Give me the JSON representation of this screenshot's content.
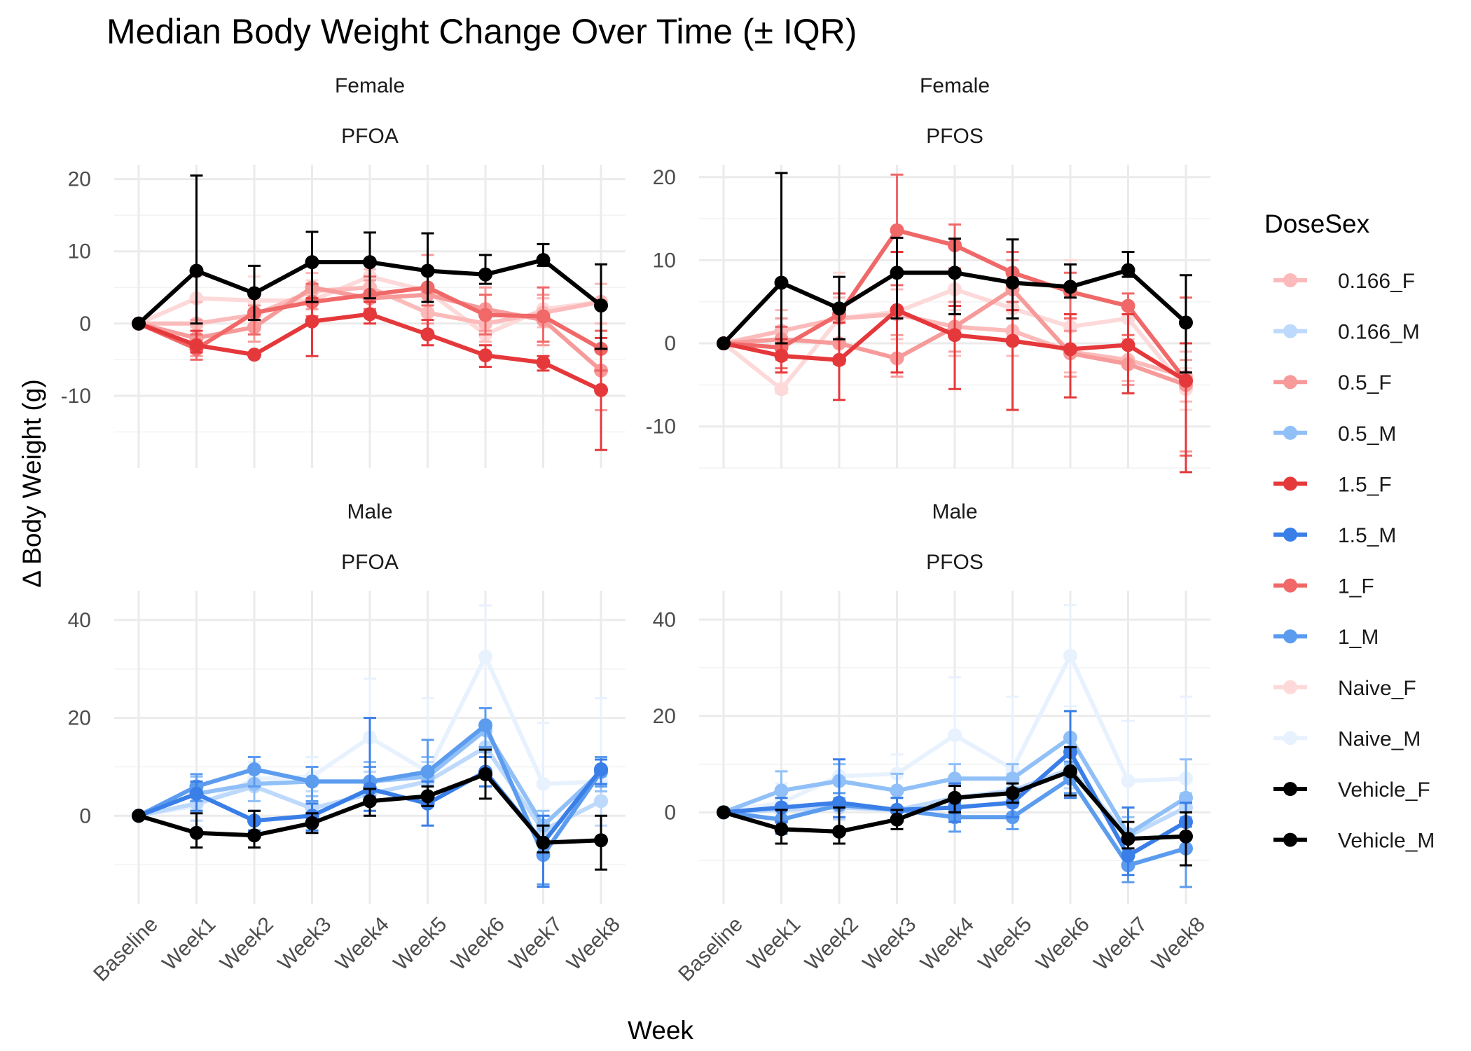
{
  "chart_data": {
    "type": "line",
    "title": "Median Body Weight Change Over Time (± IQR)",
    "xlabel": "Week",
    "ylabel": "Δ Body Weight (g)",
    "categories": [
      "Baseline",
      "Week1",
      "Week2",
      "Week3",
      "Week4",
      "Week5",
      "Week6",
      "Week7",
      "Week8"
    ],
    "legend": {
      "title": "DoseSex",
      "position": "right",
      "entries": [
        {
          "name": "0.166_F",
          "color": "#fcbaba"
        },
        {
          "name": "0.166_M",
          "color": "#bdd9fc"
        },
        {
          "name": "0.5_F",
          "color": "#f79a9a"
        },
        {
          "name": "0.5_M",
          "color": "#90c0f7"
        },
        {
          "name": "1.5_F",
          "color": "#e5383b"
        },
        {
          "name": "1.5_M",
          "color": "#3a7ee8"
        },
        {
          "name": "1_F",
          "color": "#f06868"
        },
        {
          "name": "1_M",
          "color": "#5c9cef"
        },
        {
          "name": "Naive_F",
          "color": "#fdd9d9"
        },
        {
          "name": "Naive_M",
          "color": "#e8f2fe"
        },
        {
          "name": "Vehicle_F",
          "color": "#000000"
        },
        {
          "name": "Vehicle_M",
          "color": "#000000"
        }
      ]
    },
    "grid": true,
    "panels": [
      {
        "strip": [
          "Female",
          "PFOA"
        ],
        "ylim": [
          -20,
          22
        ],
        "yticks": [
          -10,
          0,
          10,
          20
        ],
        "series": [
          {
            "name": "Naive_F",
            "values": [
              0,
              3.5,
              3.2,
              3.2,
              6.5,
              4.5,
              -1.5,
              2.0,
              3.0
            ],
            "lo": [
              0,
              -0.5,
              0,
              0,
              3.5,
              2.0,
              -4.0,
              0,
              0
            ],
            "hi": [
              0,
              6.5,
              6.5,
              6.0,
              8.5,
              7.5,
              1.0,
              4.0,
              5.5
            ]
          },
          {
            "name": "0.166_F",
            "values": [
              0,
              0,
              1.2,
              4.5,
              5.0,
              1.5,
              0,
              1.5,
              3.0
            ],
            "lo": [
              0,
              -3.0,
              -1.5,
              2.0,
              3.0,
              -1.0,
              -2.5,
              -0.5,
              0
            ],
            "hi": [
              0,
              3.0,
              4.0,
              7.0,
              7.5,
              4.0,
              2.0,
              3.5,
              5.5
            ]
          },
          {
            "name": "0.5_F",
            "values": [
              0,
              -2.0,
              -0.5,
              5.0,
              3.5,
              4.0,
              2.0,
              0.5,
              -6.5
            ],
            "lo": [
              0,
              -4.5,
              -2.5,
              2.0,
              1.0,
              0,
              -1.0,
              -3.0,
              -12.0
            ],
            "hi": [
              0,
              0.5,
              2.5,
              8.5,
              6.0,
              9.5,
              5.0,
              4.0,
              -1.0
            ]
          },
          {
            "name": "1_F",
            "values": [
              0,
              -3.5,
              1.5,
              3.0,
              4.0,
              5.0,
              1.2,
              1.0,
              -3.5
            ],
            "lo": [
              0,
              -5.0,
              -1.5,
              1.0,
              2.0,
              2.5,
              -1.5,
              -2.5,
              -6.5
            ],
            "hi": [
              0,
              -1.5,
              4.5,
              5.5,
              6.5,
              7.0,
              4.0,
              5.0,
              -1.0
            ]
          },
          {
            "name": "1.5_F",
            "values": [
              0,
              -3.0,
              -4.3,
              0.3,
              1.3,
              -1.5,
              -4.4,
              -5.4,
              -9.2
            ],
            "lo": [
              0,
              -4.0,
              -4.5,
              -4.5,
              0,
              -3.0,
              -6.0,
              -6.5,
              -17.5
            ],
            "hi": [
              0,
              -1.0,
              -4.0,
              3.5,
              3.0,
              0.5,
              -3.0,
              -4.5,
              -2.0
            ]
          },
          {
            "name": "Vehicle_F",
            "values": [
              0,
              7.3,
              4.2,
              8.5,
              8.5,
              7.3,
              6.8,
              8.8,
              2.5
            ],
            "lo": [
              0,
              0,
              0.5,
              3.0,
              3.5,
              3.0,
              5.5,
              8.0,
              -3.5
            ],
            "hi": [
              0,
              20.5,
              8.0,
              12.7,
              12.6,
              12.5,
              9.5,
              11.0,
              8.2
            ]
          }
        ]
      },
      {
        "strip": [
          "Female",
          "PFOS"
        ],
        "ylim": [
          -15,
          21.5
        ],
        "yticks": [
          -10,
          0,
          10,
          20
        ],
        "series": [
          {
            "name": "Naive_F",
            "values": [
              0,
              -5.5,
              3.0,
              3.8,
              6.5,
              4.2,
              2.0,
              3.0,
              -5.5
            ],
            "lo": [
              0,
              -6.0,
              0,
              0,
              4.0,
              1.0,
              -1.0,
              0,
              -8.0
            ],
            "hi": [
              0,
              3.0,
              8.5,
              7.0,
              8.5,
              7.0,
              10.0,
              5.0,
              -3.0
            ]
          },
          {
            "name": "0.166_F",
            "values": [
              0,
              1.5,
              3.0,
              3.5,
              2.0,
              1.5,
              -1.0,
              -2.0,
              -4.0
            ],
            "lo": [
              0,
              -1.5,
              0.5,
              0.5,
              -1.5,
              -1.5,
              -3.5,
              -4.5,
              -7.0
            ],
            "hi": [
              0,
              4.0,
              5.5,
              6.5,
              5.0,
              4.0,
              1.5,
              0.5,
              -1.0
            ]
          },
          {
            "name": "0.5_F",
            "values": [
              0,
              0.5,
              0,
              -1.8,
              2.0,
              6.5,
              -1.2,
              -2.5,
              -5.0
            ],
            "lo": [
              0,
              -2.0,
              -2.5,
              -4.0,
              -1.0,
              3.0,
              -4.0,
              -5.0,
              -13.0
            ],
            "hi": [
              0,
              3.0,
              2.5,
              1.0,
              5.0,
              10.0,
              1.5,
              0,
              -2.0
            ]
          },
          {
            "name": "1_F",
            "values": [
              0,
              -0.5,
              3.5,
              13.6,
              11.8,
              8.5,
              6.2,
              4.5,
              -4.5
            ],
            "lo": [
              0,
              -3.0,
              0.5,
              7.0,
              9.0,
              5.0,
              3.0,
              1.0,
              -13.5
            ],
            "hi": [
              0,
              2.0,
              6.0,
              20.3,
              14.3,
              11.0,
              8.5,
              6.0,
              5.5
            ]
          },
          {
            "name": "1.5_F",
            "values": [
              0,
              -1.5,
              -2.0,
              4.0,
              1.0,
              0.3,
              -0.7,
              -0.2,
              -4.5
            ],
            "lo": [
              0,
              -3.5,
              -6.8,
              -3.5,
              -5.5,
              -8.0,
              -6.5,
              -6.0,
              -15.5
            ],
            "hi": [
              0,
              0.5,
              2.5,
              11.0,
              4.5,
              4.0,
              3.5,
              3.5,
              0
            ]
          },
          {
            "name": "Vehicle_F",
            "values": [
              0,
              7.3,
              4.2,
              8.5,
              8.5,
              7.3,
              6.8,
              8.8,
              2.5
            ],
            "lo": [
              0,
              0,
              0.5,
              3.0,
              3.5,
              3.0,
              5.5,
              8.0,
              -3.5
            ],
            "hi": [
              0,
              20.5,
              8.0,
              12.7,
              12.6,
              12.5,
              9.5,
              11.0,
              8.2
            ]
          }
        ]
      },
      {
        "strip": [
          "Male",
          "PFOA"
        ],
        "ylim": [
          -18,
          46
        ],
        "yticks": [
          0,
          20,
          40
        ],
        "series": [
          {
            "name": "Naive_M",
            "values": [
              0,
              2.0,
              7.5,
              8.0,
              16.0,
              9.0,
              32.5,
              6.5,
              7.0
            ],
            "lo": [
              0,
              -2.0,
              3.0,
              4.0,
              6.0,
              4.0,
              22.0,
              -1.0,
              -5.0
            ],
            "hi": [
              0,
              6.0,
              11.0,
              12.0,
              28.0,
              24.0,
              43.0,
              19.0,
              24.0
            ]
          },
          {
            "name": "0.166_M",
            "values": [
              0,
              2.5,
              6.0,
              1.5,
              4.5,
              7.0,
              14.0,
              -3.0,
              3.0
            ],
            "lo": [
              0,
              -1.0,
              3.0,
              -2.0,
              0,
              3.0,
              9.0,
              -6.0,
              -2.0
            ],
            "hi": [
              0,
              6.0,
              9.0,
              5.0,
              9.0,
              11.0,
              19.0,
              0,
              8.0
            ]
          },
          {
            "name": "0.5_M",
            "values": [
              0,
              4.5,
              6.5,
              7.0,
              7.0,
              8.0,
              17.5,
              -2.0,
              9.0
            ],
            "lo": [
              0,
              1.0,
              3.0,
              4.0,
              3.0,
              4.0,
              13.0,
              -5.0,
              5.0
            ],
            "hi": [
              0,
              8.0,
              10.0,
              10.0,
              11.0,
              12.0,
              22.0,
              1.0,
              12.0
            ]
          },
          {
            "name": "1_M",
            "values": [
              0,
              6.0,
              9.5,
              7.0,
              7.0,
              9.0,
              18.5,
              -8.0,
              9.0
            ],
            "lo": [
              0,
              3.0,
              6.0,
              3.0,
              4.0,
              3.0,
              14.0,
              -14.0,
              6.0
            ],
            "hi": [
              0,
              8.5,
              12.0,
              10.0,
              10.0,
              15.5,
              22.0,
              -2.0,
              12.0
            ]
          },
          {
            "name": "1.5_M",
            "values": [
              0,
              4.5,
              -1.0,
              0,
              5.5,
              2.5,
              9.0,
              -5.5,
              9.5
            ],
            "lo": [
              0,
              1.0,
              -3.0,
              -3.0,
              1.0,
              -2.0,
              6.0,
              -14.5,
              6.5
            ],
            "hi": [
              0,
              7.0,
              1.0,
              2.5,
              20.0,
              7.0,
              12.0,
              0,
              11.5
            ]
          },
          {
            "name": "Vehicle_M",
            "values": [
              0,
              -3.5,
              -4.0,
              -1.5,
              3.0,
              4.0,
              8.5,
              -5.5,
              -5.0
            ],
            "lo": [
              0,
              -6.5,
              -6.5,
              -3.5,
              0,
              2.0,
              3.5,
              -7.5,
              -11.0
            ],
            "hi": [
              0,
              0.5,
              1.0,
              0.5,
              5.5,
              6.0,
              13.5,
              -2.0,
              0
            ]
          }
        ]
      },
      {
        "strip": [
          "Male",
          "PFOS"
        ],
        "ylim": [
          -19,
          46
        ],
        "yticks": [
          0,
          20,
          40
        ],
        "series": [
          {
            "name": "Naive_M",
            "values": [
              0,
              2.0,
              7.5,
              8.0,
              16.0,
              9.0,
              32.5,
              6.5,
              7.0
            ],
            "lo": [
              0,
              -2.0,
              3.0,
              4.0,
              6.0,
              4.0,
              22.0,
              -1.0,
              -5.0
            ],
            "hi": [
              0,
              6.0,
              11.0,
              12.0,
              28.0,
              24.0,
              43.0,
              19.0,
              24.0
            ]
          },
          {
            "name": "0.166_M",
            "values": [
              0,
              0.5,
              1.0,
              0.5,
              3.0,
              4.5,
              9.0,
              -5.0,
              1.0
            ],
            "lo": [
              0,
              -2.0,
              -1.5,
              -2.0,
              0,
              1.0,
              5.0,
              -8.0,
              -2.0
            ],
            "hi": [
              0,
              3.0,
              4.0,
              3.0,
              6.0,
              8.0,
              13.0,
              -2.0,
              4.0
            ]
          },
          {
            "name": "0.5_M",
            "values": [
              0,
              4.5,
              6.5,
              4.5,
              7.0,
              7.0,
              15.5,
              -4.5,
              3.0
            ],
            "lo": [
              0,
              1.0,
              3.0,
              1.0,
              3.0,
              3.0,
              10.0,
              -8.0,
              -1.0
            ],
            "hi": [
              0,
              8.5,
              10.0,
              8.0,
              10.0,
              10.0,
              21.0,
              -1.0,
              11.0
            ]
          },
          {
            "name": "1_M",
            "values": [
              0,
              -1.5,
              1.5,
              0.5,
              -1.0,
              -1.0,
              7.0,
              -11.0,
              -7.5
            ],
            "lo": [
              0,
              -4.5,
              -1.0,
              -2.0,
              -4.0,
              -3.5,
              4.0,
              -14.5,
              -15.5
            ],
            "hi": [
              0,
              1.5,
              4.0,
              3.0,
              2.0,
              1.5,
              10.5,
              -7.5,
              -3.0
            ]
          },
          {
            "name": "1.5_M",
            "values": [
              0,
              1.0,
              2.0,
              0.5,
              1.0,
              2.0,
              12.5,
              -9.0,
              -2.0
            ],
            "lo": [
              0,
              -2.0,
              -1.0,
              -2.0,
              -2.0,
              -1.0,
              3.0,
              -13.0,
              -5.0
            ],
            "hi": [
              0,
              3.0,
              11.0,
              3.0,
              6.0,
              5.0,
              21.0,
              1.0,
              2.0
            ]
          },
          {
            "name": "Vehicle_M",
            "values": [
              0,
              -3.5,
              -4.0,
              -1.5,
              3.0,
              4.0,
              8.5,
              -5.5,
              -5.0
            ],
            "lo": [
              0,
              -6.5,
              -6.5,
              -3.5,
              0,
              2.0,
              3.5,
              -7.5,
              -11.0
            ],
            "hi": [
              0,
              0.5,
              1.0,
              0.5,
              5.5,
              6.0,
              13.5,
              -2.0,
              0
            ]
          }
        ]
      }
    ]
  }
}
